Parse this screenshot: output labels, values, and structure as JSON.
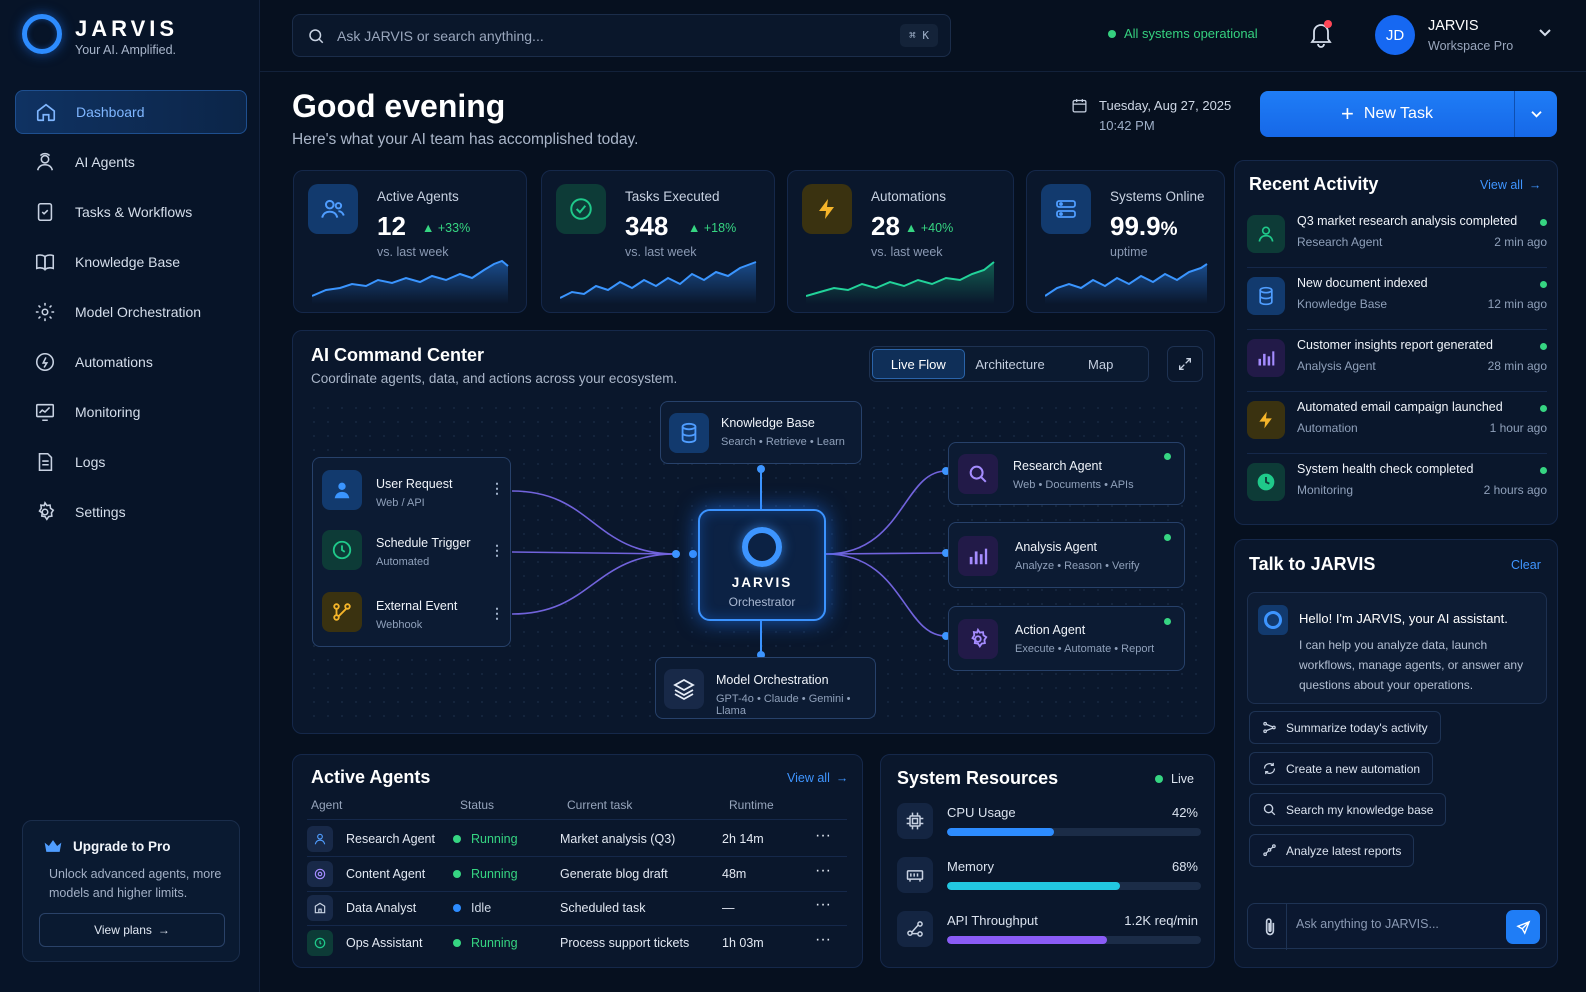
{
  "brand": {
    "title": "JARVIS",
    "tagline": "Your AI. Amplified."
  },
  "sidebar": {
    "items": [
      {
        "label": "Dashboard",
        "icon": "home-icon",
        "active": true
      },
      {
        "label": "AI Agents",
        "icon": "agent-icon"
      },
      {
        "label": "Tasks & Workflows",
        "icon": "task-icon"
      },
      {
        "label": "Knowledge Base",
        "icon": "book-icon"
      },
      {
        "label": "Model Orchestration",
        "icon": "gear-icon"
      },
      {
        "label": "Automations",
        "icon": "automation-icon"
      },
      {
        "label": "Monitoring",
        "icon": "monitor-icon"
      },
      {
        "label": "Logs",
        "icon": "document-icon"
      },
      {
        "label": "Settings",
        "icon": "settings-icon"
      }
    ],
    "upgrade": {
      "title": "Upgrade to Pro",
      "description": "Unlock advanced agents, more models and higher limits.",
      "button": "View plans"
    }
  },
  "topbar": {
    "search_placeholder": "Ask JARVIS or search anything...",
    "shortcut": "⌘ K",
    "system_status": "All systems operational",
    "user": {
      "initials": "JD",
      "name": "JARVIS",
      "plan": "Workspace Pro"
    }
  },
  "header": {
    "greeting": "Good evening",
    "subtitle": "Here's what your AI team has accomplished today.",
    "date": "Tuesday, Aug 27, 2025",
    "time": "10:42 PM",
    "new_task": "New Task"
  },
  "stats": [
    {
      "label": "Active Agents",
      "value": "12",
      "delta": "+33%",
      "sub": "vs. last week",
      "color": "#2d8cff"
    },
    {
      "label": "Tasks Executed",
      "value": "348",
      "delta": "+18%",
      "sub": "vs. last week",
      "color": "#1fc98a"
    },
    {
      "label": "Automations",
      "value": "28",
      "delta": "+40%",
      "sub": "vs. last week",
      "color": "#f5b52a"
    },
    {
      "label": "Systems Online",
      "value": "99.9",
      "unit": "%",
      "sub": "uptime",
      "color": "#2d8cff"
    }
  ],
  "command_center": {
    "title": "AI Command Center",
    "subtitle": "Coordinate agents, data, and actions across your ecosystem.",
    "tabs": [
      "Live Flow",
      "Architecture",
      "Map"
    ],
    "inputs": [
      {
        "title": "User Request",
        "sub": "Web / API"
      },
      {
        "title": "Schedule Trigger",
        "sub": "Automated"
      },
      {
        "title": "External Event",
        "sub": "Webhook"
      }
    ],
    "knowledge": {
      "title": "Knowledge Base",
      "sub": "Search • Retrieve • Learn"
    },
    "models": {
      "title": "Model Orchestration",
      "sub": "GPT-4o • Claude • Gemini • Llama"
    },
    "core": {
      "title": "JARVIS",
      "sub": "Orchestrator"
    },
    "outputs": [
      {
        "title": "Research Agent",
        "sub": "Web • Documents • APIs"
      },
      {
        "title": "Analysis Agent",
        "sub": "Analyze • Reason • Verify"
      },
      {
        "title": "Action Agent",
        "sub": "Execute • Automate • Report"
      }
    ]
  },
  "active_agents": {
    "title": "Active Agents",
    "view_all": "View all",
    "columns": [
      "Agent",
      "Status",
      "Current task",
      "Runtime"
    ],
    "rows": [
      {
        "agent": "Research Agent",
        "status": "Running",
        "task": "Market analysis (Q3)",
        "runtime": "2h 14m"
      },
      {
        "agent": "Content Agent",
        "status": "Running",
        "task": "Generate blog draft",
        "runtime": "48m"
      },
      {
        "agent": "Data Analyst",
        "status": "Idle",
        "task": "Scheduled task",
        "runtime": "—"
      },
      {
        "agent": "Ops Assistant",
        "status": "Running",
        "task": "Process support tickets",
        "runtime": "1h 03m"
      }
    ]
  },
  "system_resources": {
    "title": "System Resources",
    "live": "Live",
    "items": [
      {
        "label": "CPU Usage",
        "value": "42%",
        "level": 0.42,
        "color": "#2d8cff"
      },
      {
        "label": "Memory",
        "value": "68%",
        "level": 0.68,
        "color": "#22c7e0"
      },
      {
        "label": "API Throughput",
        "value": "1.2K req/min",
        "level": 0.63,
        "color": "#8a5cf6"
      }
    ]
  },
  "recent_activity": {
    "title": "Recent Activity",
    "view_all": "View all",
    "items": [
      {
        "title": "Q3 market research analysis completed",
        "source": "Research Agent",
        "time": "2 min ago"
      },
      {
        "title": "New document indexed",
        "source": "Knowledge Base",
        "time": "12 min ago"
      },
      {
        "title": "Customer insights report generated",
        "source": "Analysis Agent",
        "time": "28 min ago"
      },
      {
        "title": "Automated email campaign launched",
        "source": "Automation",
        "time": "1 hour ago"
      },
      {
        "title": "System health check completed",
        "source": "Monitoring",
        "time": "2 hours ago"
      }
    ]
  },
  "talk": {
    "title": "Talk to JARVIS",
    "clear": "Clear",
    "greeting": "Hello! I'm JARVIS, your AI assistant.",
    "message": "I can help you analyze data, launch workflows, manage agents, or answer any questions about your operations.",
    "suggestions": [
      "Summarize today's activity",
      "Create a new automation",
      "Search my knowledge base",
      "Analyze latest reports"
    ],
    "input_placeholder": "Ask anything to JARVIS..."
  }
}
